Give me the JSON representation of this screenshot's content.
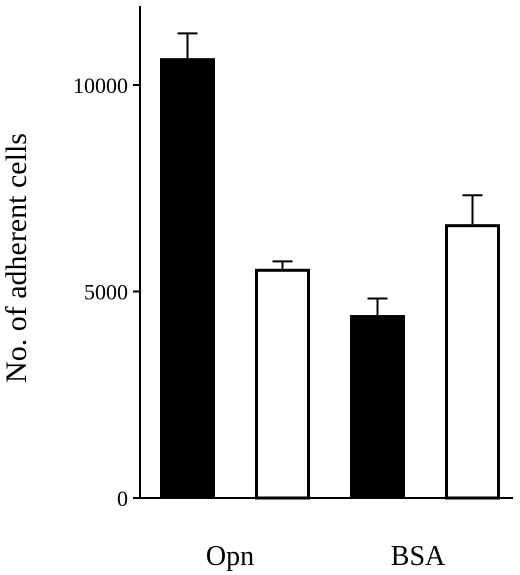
{
  "chart_data": {
    "type": "bar",
    "title": "",
    "xlabel": "",
    "ylabel": "No. of adherent cells",
    "ylim": [
      0,
      12000
    ],
    "yticks": [
      0,
      5000,
      10000
    ],
    "groups": [
      "Opn",
      "BSA"
    ],
    "bars": [
      {
        "group": "Opn",
        "fill": "filled",
        "value": 10650,
        "error": 600
      },
      {
        "group": "Opn",
        "fill": "open",
        "value": 5550,
        "error": 180
      },
      {
        "group": "BSA",
        "fill": "filled",
        "value": 4430,
        "error": 400
      },
      {
        "group": "BSA",
        "fill": "open",
        "value": 6630,
        "error": 700
      }
    ],
    "grid": false,
    "legend": "none"
  },
  "colors": {
    "filled": "#000000",
    "open": "#ffffff",
    "stroke": "#000000"
  }
}
